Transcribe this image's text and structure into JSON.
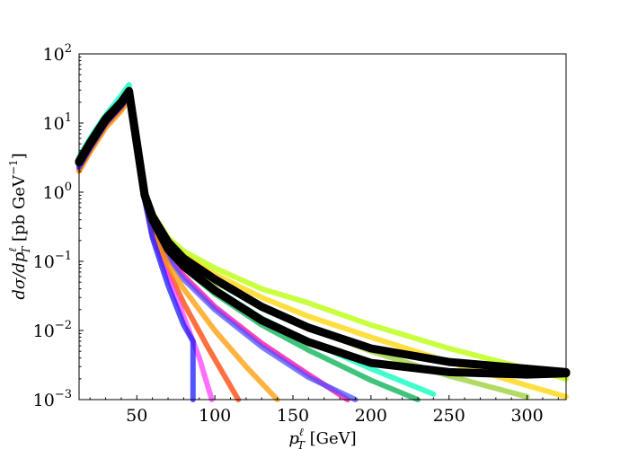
{
  "chart_data": {
    "type": "line",
    "title": "",
    "xlabel": "p_T^ℓ [GeV]",
    "ylabel": "dσ/dp_T^ℓ [pb GeV^−1]",
    "yscale": "log",
    "xlim": [
      13,
      325
    ],
    "ylim": [
      0.001,
      100
    ],
    "grid": false,
    "x_ticks": [
      50,
      100,
      150,
      200,
      250,
      300
    ],
    "y_ticks": [
      {
        "value": 0.001,
        "mantissa": "10",
        "exp": "−3"
      },
      {
        "value": 0.01,
        "mantissa": "10",
        "exp": "−2"
      },
      {
        "value": 0.1,
        "mantissa": "10",
        "exp": "−1"
      },
      {
        "value": 1,
        "mantissa": "10",
        "exp": "0"
      },
      {
        "value": 10,
        "mantissa": "10",
        "exp": "1"
      },
      {
        "value": 100,
        "mantissa": "10",
        "exp": "2"
      }
    ],
    "series": [
      {
        "color": "#b8ff00",
        "x": [
          13,
          20,
          30,
          40,
          45,
          55,
          60,
          70,
          80,
          100,
          130,
          160,
          200,
          250,
          300,
          325
        ],
        "y": [
          2.6,
          4.8,
          11,
          19,
          28,
          0.95,
          0.5,
          0.22,
          0.14,
          0.08,
          0.04,
          0.025,
          0.012,
          0.0055,
          0.0028,
          0.002
        ]
      },
      {
        "color": "#ffd400",
        "x": [
          13,
          20,
          30,
          40,
          45,
          55,
          60,
          70,
          80,
          100,
          130,
          160,
          200,
          250,
          300,
          325
        ],
        "y": [
          2.5,
          4.6,
          10.5,
          18,
          27,
          0.92,
          0.45,
          0.19,
          0.12,
          0.065,
          0.03,
          0.016,
          0.008,
          0.0035,
          0.0016,
          0.0011
        ]
      },
      {
        "color": "#9acd32",
        "x": [
          13,
          20,
          30,
          40,
          45,
          55,
          60,
          70,
          80,
          100,
          130,
          160,
          200,
          250,
          300
        ],
        "y": [
          2.4,
          4.4,
          10,
          17.5,
          26,
          0.9,
          0.4,
          0.16,
          0.1,
          0.05,
          0.022,
          0.011,
          0.005,
          0.0022,
          0.0011
        ]
      },
      {
        "color": "#00ffbb",
        "x": [
          13,
          20,
          30,
          40,
          45,
          55,
          60,
          70,
          80,
          100,
          130,
          160,
          200,
          240
        ],
        "y": [
          3.2,
          6,
          13,
          25,
          36,
          0.92,
          0.4,
          0.15,
          0.09,
          0.04,
          0.015,
          0.007,
          0.0028,
          0.0012
        ]
      },
      {
        "color": "#00b050",
        "x": [
          13,
          20,
          30,
          40,
          45,
          55,
          60,
          70,
          80,
          100,
          130,
          160,
          200,
          230
        ],
        "y": [
          2.9,
          5.4,
          12,
          21,
          31,
          0.9,
          0.38,
          0.14,
          0.08,
          0.034,
          0.012,
          0.0052,
          0.0019,
          0.001
        ]
      },
      {
        "color": "#ff00aa",
        "x": [
          13,
          20,
          30,
          40,
          45,
          55,
          60,
          70,
          80,
          100,
          130,
          160,
          185
        ],
        "y": [
          2.4,
          4.5,
          10,
          18,
          26,
          0.85,
          0.33,
          0.12,
          0.062,
          0.022,
          0.0065,
          0.0023,
          0.001
        ]
      },
      {
        "color": "#5050ff",
        "x": [
          13,
          20,
          30,
          40,
          45,
          55,
          60,
          70,
          80,
          100,
          130,
          160,
          190
        ],
        "y": [
          2.6,
          5,
          11,
          20,
          28,
          0.85,
          0.32,
          0.11,
          0.055,
          0.02,
          0.0058,
          0.0021,
          0.001
        ]
      },
      {
        "color": "#ff4000",
        "x": [
          13,
          20,
          30,
          40,
          45,
          55,
          60,
          70,
          80,
          95,
          115
        ],
        "y": [
          2.1,
          4,
          9,
          16,
          24,
          0.8,
          0.26,
          0.075,
          0.025,
          0.006,
          0.001
        ]
      },
      {
        "color": "#ff40ff",
        "x": [
          13,
          20,
          30,
          40,
          45,
          55,
          60,
          70,
          80,
          90,
          98
        ],
        "y": [
          2.2,
          4.2,
          9.5,
          17,
          25,
          0.8,
          0.24,
          0.06,
          0.016,
          0.004,
          0.001
        ]
      },
      {
        "color": "#ff9900",
        "x": [
          13,
          20,
          30,
          40,
          45,
          55,
          60,
          70,
          80,
          100,
          120,
          140
        ],
        "y": [
          2.0,
          3.8,
          8.5,
          15,
          22,
          0.8,
          0.29,
          0.09,
          0.04,
          0.01,
          0.003,
          0.001
        ]
      },
      {
        "color": "#1a1aff",
        "x": [
          13,
          20,
          30,
          40,
          45,
          55,
          60,
          70,
          80,
          86,
          86
        ],
        "y": [
          2.3,
          4.3,
          9.8,
          17.5,
          25,
          0.78,
          0.22,
          0.045,
          0.012,
          0.007,
          0.001
        ]
      },
      {
        "color": "#000000",
        "x": [
          13,
          20,
          30,
          40,
          45,
          55,
          60,
          70,
          80,
          100,
          130,
          160,
          200,
          250,
          300,
          325
        ],
        "y": [
          2.8,
          5.2,
          11.5,
          20,
          29,
          0.92,
          0.45,
          0.19,
          0.11,
          0.055,
          0.022,
          0.011,
          0.0055,
          0.0035,
          0.0028,
          0.0025
        ]
      },
      {
        "color": "#000000",
        "x": [
          13,
          20,
          30,
          40,
          45,
          55,
          60,
          70,
          80,
          100,
          130,
          160,
          200,
          250,
          300,
          325
        ],
        "y": [
          2.7,
          5.0,
          11,
          19.5,
          28,
          0.9,
          0.4,
          0.15,
          0.085,
          0.038,
          0.014,
          0.0068,
          0.0034,
          0.0025,
          0.0023,
          0.0024
        ]
      }
    ]
  }
}
